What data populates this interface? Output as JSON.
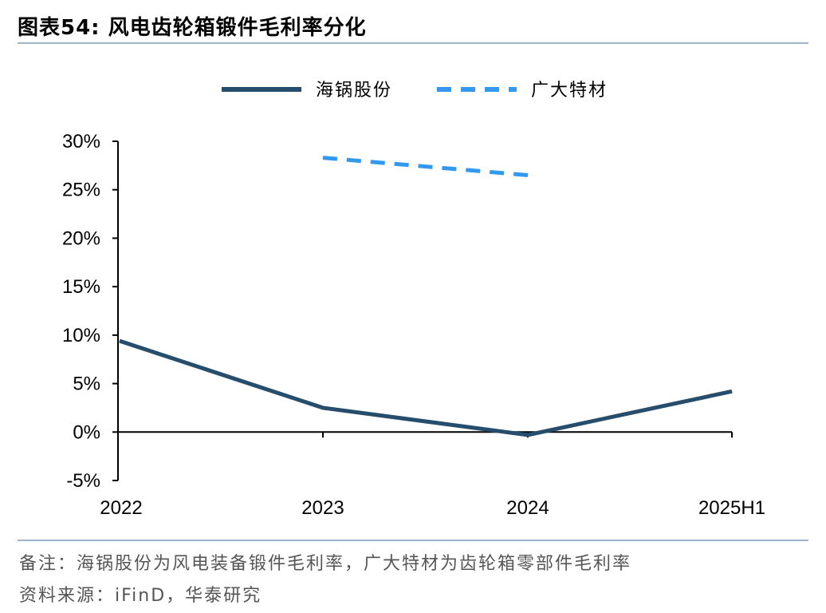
{
  "title": "图表54:  风电齿轮箱锻件毛利率分化",
  "footer": {
    "note": "备注：海锅股份为风电装备锻件毛利率，广大特材为齿轮箱零部件毛利率",
    "source": "资料来源：iFinD，华泰研究"
  },
  "colors": {
    "rule": "#9eb4c8",
    "series_solid": "#264d6b",
    "series_dashed": "#3399ee",
    "axis": "#000000"
  },
  "chart_data": {
    "type": "line",
    "title": "",
    "xlabel": "",
    "ylabel": "",
    "categories": [
      "2022",
      "2023",
      "2024",
      "2025H1"
    ],
    "y_ticks": [
      "30%",
      "25%",
      "20%",
      "15%",
      "10%",
      "5%",
      "0%",
      "-5%"
    ],
    "ylim": [
      -5,
      30
    ],
    "grid": false,
    "legend_position": "top",
    "series": [
      {
        "name": "海锅股份",
        "values": [
          9.4,
          2.5,
          -0.3,
          4.2
        ],
        "style": "solid"
      },
      {
        "name": "广大特材",
        "values": [
          null,
          28.3,
          26.5,
          null
        ],
        "style": "dashed"
      }
    ]
  }
}
